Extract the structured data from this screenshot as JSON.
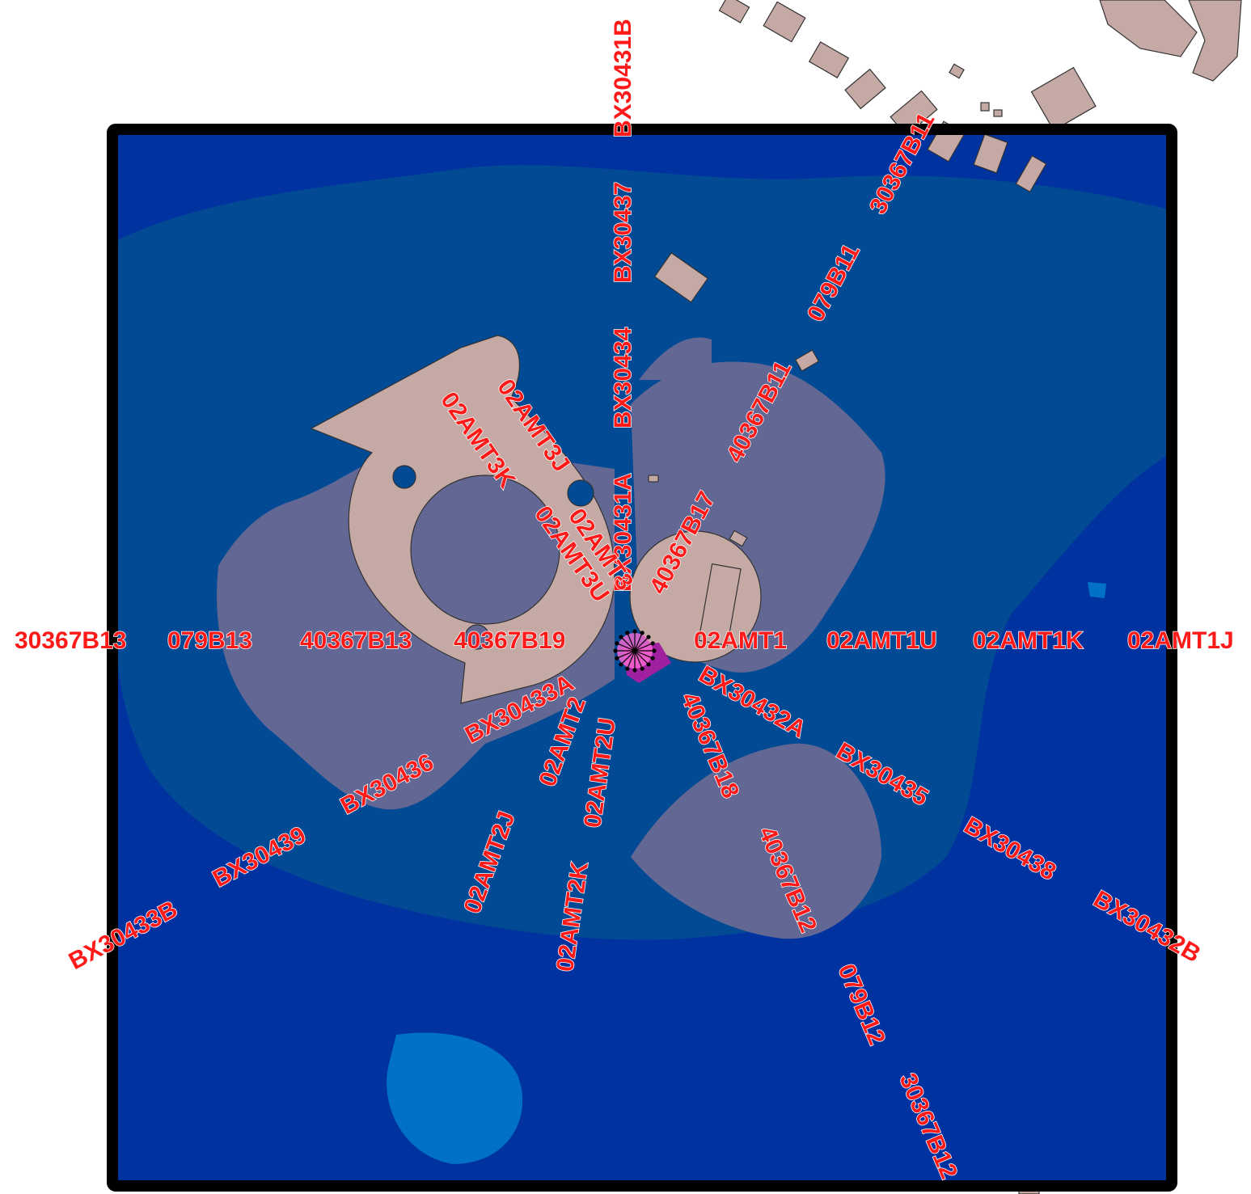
{
  "map": {
    "colors": {
      "outside": "#ffffff",
      "frame": "#000000",
      "zone_outer": "#0033a0",
      "zone_mid": "#024a94",
      "zone_light": "#0071c5",
      "zone_inner": "#636794",
      "building": "#c4a9a5",
      "label": "#ff1a1a",
      "hotspot": "#a020a0"
    },
    "labels": [
      {
        "id": "30367B13",
        "text": "30367B13"
      },
      {
        "id": "079B13",
        "text": "079B13"
      },
      {
        "id": "40367B13",
        "text": "40367B13"
      },
      {
        "id": "40367B19",
        "text": "40367B19"
      },
      {
        "id": "02AMT1",
        "text": "02AMT1"
      },
      {
        "id": "02AMT1U",
        "text": "02AMT1U"
      },
      {
        "id": "02AMT1K",
        "text": "02AMT1K"
      },
      {
        "id": "02AMT1J",
        "text": "02AMT1J"
      },
      {
        "id": "BX30431B",
        "text": "BX30431B"
      },
      {
        "id": "BX30437",
        "text": "BX30437"
      },
      {
        "id": "BX30434",
        "text": "BX30434"
      },
      {
        "id": "BX30431A",
        "text": "BX30431A"
      },
      {
        "id": "30367B11",
        "text": "30367B11"
      },
      {
        "id": "079B11",
        "text": "079B11"
      },
      {
        "id": "40367B11",
        "text": "40367B11"
      },
      {
        "id": "40367B17",
        "text": "40367B17"
      },
      {
        "id": "02AMT3J",
        "text": "02AMT3J"
      },
      {
        "id": "02AMT3K",
        "text": "02AMT3K"
      },
      {
        "id": "02AMT3",
        "text": "02AMT3"
      },
      {
        "id": "02AMT3U",
        "text": "02AMT3U"
      },
      {
        "id": "BX30433A",
        "text": "BX30433A"
      },
      {
        "id": "BX30436",
        "text": "BX30436"
      },
      {
        "id": "BX30439",
        "text": "BX30439"
      },
      {
        "id": "BX30433B",
        "text": "BX30433B"
      },
      {
        "id": "02AMT2",
        "text": "02AMT2"
      },
      {
        "id": "02AMT2U",
        "text": "02AMT2U"
      },
      {
        "id": "02AMT2J",
        "text": "02AMT2J"
      },
      {
        "id": "02AMT2K",
        "text": "02AMT2K"
      },
      {
        "id": "40367B18",
        "text": "40367B18"
      },
      {
        "id": "40367B12",
        "text": "40367B12"
      },
      {
        "id": "079B12",
        "text": "079B12"
      },
      {
        "id": "30367B12",
        "text": "30367B12"
      },
      {
        "id": "BX30432A",
        "text": "BX30432A"
      },
      {
        "id": "BX30435",
        "text": "BX30435"
      },
      {
        "id": "BX30438",
        "text": "BX30438"
      },
      {
        "id": "BX30432B",
        "text": "BX30432B"
      }
    ]
  }
}
